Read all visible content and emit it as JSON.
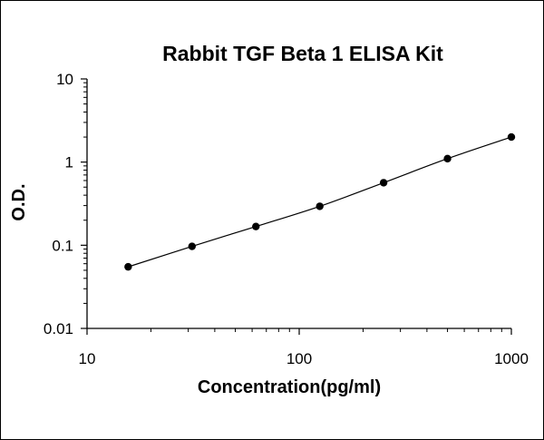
{
  "chart_data": {
    "type": "scatter",
    "title": "Rabbit TGF Beta 1 ELISA Kit",
    "xlabel": "Concentration(pg/ml)",
    "ylabel": "O.D.",
    "x_scale": "log",
    "y_scale": "log",
    "xlim": [
      10,
      1000
    ],
    "ylim": [
      0.01,
      10
    ],
    "x_ticks": [
      "10",
      "100",
      "1000"
    ],
    "y_ticks": [
      "0.01",
      "0.1",
      "1",
      "10"
    ],
    "grid": false,
    "legend": "none",
    "series": [
      {
        "x": [
          15.625,
          31.25,
          62.5,
          125,
          250,
          500,
          1000
        ],
        "y": [
          0.055,
          0.097,
          0.168,
          0.294,
          0.565,
          1.1,
          2.0
        ],
        "marker": "circle",
        "line": "smooth",
        "color": "#000000"
      }
    ]
  }
}
